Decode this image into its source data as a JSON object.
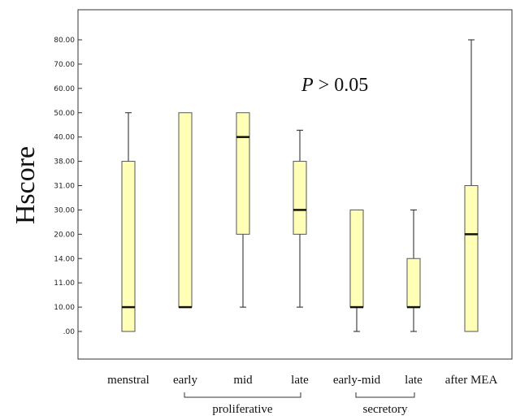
{
  "chart_data": {
    "type": "boxplot",
    "title": "",
    "ylabel": "Hscore",
    "xlabel": "",
    "annotation": {
      "italic": "P",
      "rest": " > 0.05"
    },
    "y_tick_labels": [
      ".00",
      "10.00",
      "11.00",
      "14.00",
      "20.00",
      "30.00",
      "31.00",
      "38.00",
      "40.00",
      "50.00",
      "60.00",
      "70.00",
      "80.00"
    ],
    "categories": [
      "menstral",
      "early",
      "mid",
      "late",
      "early-mid",
      "late",
      "after MEA"
    ],
    "groups": [
      {
        "label": "proliferative",
        "from": 1,
        "to": 3
      },
      {
        "label": "secretory",
        "from": 4,
        "to": 5
      }
    ],
    "boxes": [
      {
        "whisker_low": ".00",
        "q1": ".00",
        "median": "10.00",
        "q3": "38.00",
        "whisker_high": "50.00"
      },
      {
        "whisker_low": "10.00",
        "q1": "10.00",
        "median": "10.00",
        "q3": "50.00",
        "whisker_high": "50.00"
      },
      {
        "whisker_low": "10.00",
        "q1": "20.00",
        "median": "40.00",
        "q3": "50.00",
        "whisker_high": "50.00"
      },
      {
        "whisker_low": "10.00",
        "q1": "20.00",
        "median": "30.00",
        "q3": "38.00",
        "whisker_high": 42.8
      },
      {
        "whisker_low": ".00",
        "q1": "10.00",
        "median": "10.00",
        "q3": "30.00",
        "whisker_high": "30.00"
      },
      {
        "whisker_low": ".00",
        "q1": "10.00",
        "median": "10.00",
        "q3": "14.00",
        "whisker_high": "30.00"
      },
      {
        "whisker_low": ".00",
        "q1": ".00",
        "median": "20.00",
        "q3": "31.00",
        "whisker_high": "80.00"
      }
    ],
    "box_fill": "#ffffb8",
    "box_stroke": "#555555",
    "median_color": "#111111",
    "grid": false
  }
}
